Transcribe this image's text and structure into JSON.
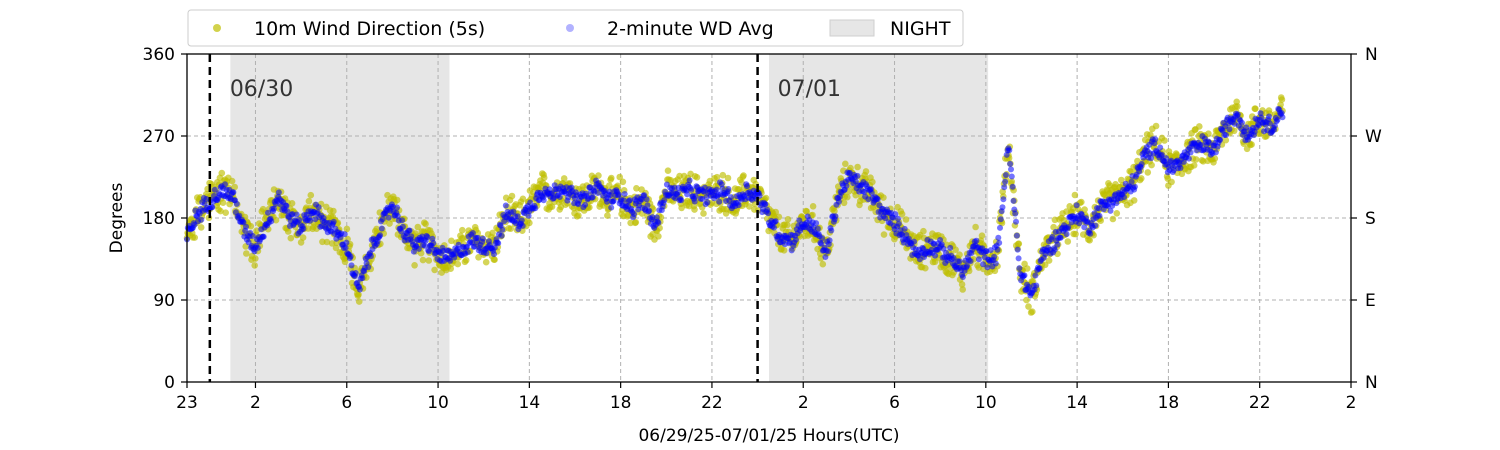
{
  "chart_data": {
    "type": "scatter",
    "title": "",
    "xlabel": "06/29/25-07/01/25  Hours(UTC)",
    "ylabel": "Degrees",
    "x_units": "hours since 06/29/25 23:00 UTC",
    "xlim": [
      0,
      51
    ],
    "ylim": [
      0,
      360
    ],
    "x_tick_values": [
      0,
      3,
      7,
      11,
      15,
      19,
      23,
      27,
      31,
      35,
      39,
      43,
      47,
      51
    ],
    "x_tick_labels": [
      "23",
      "2",
      "6",
      "10",
      "14",
      "18",
      "22",
      "2",
      "6",
      "10",
      "14",
      "18",
      "22",
      "2"
    ],
    "y_ticks": [
      0,
      90,
      180,
      270,
      360
    ],
    "y_tick_labels": [
      "0",
      "90",
      "180",
      "270",
      "360"
    ],
    "y2_tick_labels": [
      "N",
      "E",
      "S",
      "W",
      "N"
    ],
    "grid": true,
    "legend_position": "top, above plot",
    "legend": [
      {
        "label": "10m Wind Direction (5s)",
        "kind": "marker",
        "color": "#bfbf00"
      },
      {
        "label": "2-minute WD Avg",
        "kind": "marker",
        "color": "#0000ff"
      },
      {
        "label": "NIGHT",
        "kind": "patch",
        "color": "#e6e6e6"
      }
    ],
    "night_periods": [
      [
        1.9,
        11.5
      ],
      [
        25.5,
        35.1
      ]
    ],
    "day_markers": [
      {
        "x": 1,
        "label": "06/30"
      },
      {
        "x": 25,
        "label": "07/01"
      }
    ],
    "series": [
      {
        "name": "10m Wind Direction (5s)",
        "color": "#bfbf00",
        "x": [
          0,
          0.5,
          1,
          1.5,
          2,
          2.5,
          3,
          3.5,
          4,
          4.5,
          5,
          5.5,
          6,
          6.5,
          7,
          7.5,
          8,
          8.5,
          9,
          9.5,
          10,
          10.5,
          11,
          11.5,
          12,
          12.5,
          13,
          13.5,
          14,
          14.5,
          15,
          15.5,
          16,
          16.5,
          17,
          17.5,
          18,
          18.5,
          19,
          19.5,
          20,
          20.5,
          21,
          21.5,
          22,
          22.5,
          23,
          23.5,
          24,
          24.5,
          25,
          25.5,
          26,
          26.5,
          27,
          27.5,
          28,
          28.5,
          29,
          29.5,
          30,
          30.5,
          31,
          31.5,
          32,
          32.5,
          33,
          33.5,
          34,
          34.5,
          35,
          35.5,
          36,
          36.5,
          37,
          37.5,
          38,
          38.5,
          39,
          39.5,
          40,
          40.5,
          41,
          41.5,
          42,
          42.5,
          43,
          43.5,
          44,
          44.5,
          45,
          45.5,
          46,
          46.5,
          47,
          47.5,
          48
        ],
        "y": [
          160,
          185,
          200,
          210,
          205,
          165,
          150,
          175,
          205,
          180,
          170,
          190,
          175,
          165,
          150,
          100,
          140,
          170,
          195,
          165,
          150,
          155,
          140,
          135,
          145,
          155,
          150,
          150,
          185,
          175,
          190,
          210,
          205,
          215,
          200,
          200,
          215,
          200,
          205,
          190,
          200,
          170,
          210,
          205,
          210,
          205,
          205,
          210,
          195,
          210,
          205,
          180,
          160,
          155,
          175,
          170,
          140,
          200,
          225,
          215,
          205,
          185,
          175,
          160,
          140,
          150,
          145,
          135,
          120,
          150,
          135,
          140,
          260,
          120,
          95,
          140,
          155,
          170,
          185,
          170,
          190,
          200,
          205,
          220,
          250,
          260,
          235,
          240,
          255,
          260,
          255,
          280,
          295,
          270,
          290,
          280,
          300
        ],
        "spread": 25
      },
      {
        "name": "2-minute WD Avg",
        "color": "#0000ff",
        "x": [
          0,
          0.5,
          1,
          1.5,
          2,
          2.5,
          3,
          3.5,
          4,
          4.5,
          5,
          5.5,
          6,
          6.5,
          7,
          7.5,
          8,
          8.5,
          9,
          9.5,
          10,
          10.5,
          11,
          11.5,
          12,
          12.5,
          13,
          13.5,
          14,
          14.5,
          15,
          15.5,
          16,
          16.5,
          17,
          17.5,
          18,
          18.5,
          19,
          19.5,
          20,
          20.5,
          21,
          21.5,
          22,
          22.5,
          23,
          23.5,
          24,
          24.5,
          25,
          25.5,
          26,
          26.5,
          27,
          27.5,
          28,
          28.5,
          29,
          29.5,
          30,
          30.5,
          31,
          31.5,
          32,
          32.5,
          33,
          33.5,
          34,
          34.5,
          35,
          35.5,
          36,
          36.5,
          37,
          37.5,
          38,
          38.5,
          39,
          39.5,
          40,
          40.5,
          41,
          41.5,
          42,
          42.5,
          43,
          43.5,
          44,
          44.5,
          45,
          45.5,
          46,
          46.5,
          47,
          47.5,
          48
        ],
        "y": [
          160,
          185,
          200,
          210,
          205,
          165,
          150,
          175,
          205,
          180,
          170,
          190,
          175,
          165,
          150,
          100,
          140,
          170,
          195,
          165,
          150,
          155,
          140,
          135,
          145,
          155,
          150,
          150,
          185,
          175,
          190,
          210,
          205,
          215,
          200,
          200,
          215,
          200,
          205,
          190,
          200,
          170,
          210,
          205,
          210,
          205,
          205,
          210,
          195,
          210,
          205,
          180,
          160,
          155,
          175,
          170,
          140,
          200,
          225,
          215,
          205,
          185,
          175,
          160,
          140,
          150,
          145,
          135,
          120,
          150,
          135,
          140,
          260,
          120,
          95,
          140,
          155,
          170,
          185,
          170,
          190,
          200,
          205,
          220,
          250,
          260,
          235,
          240,
          255,
          260,
          255,
          280,
          295,
          270,
          290,
          280,
          300
        ],
        "spread": 12
      }
    ]
  }
}
